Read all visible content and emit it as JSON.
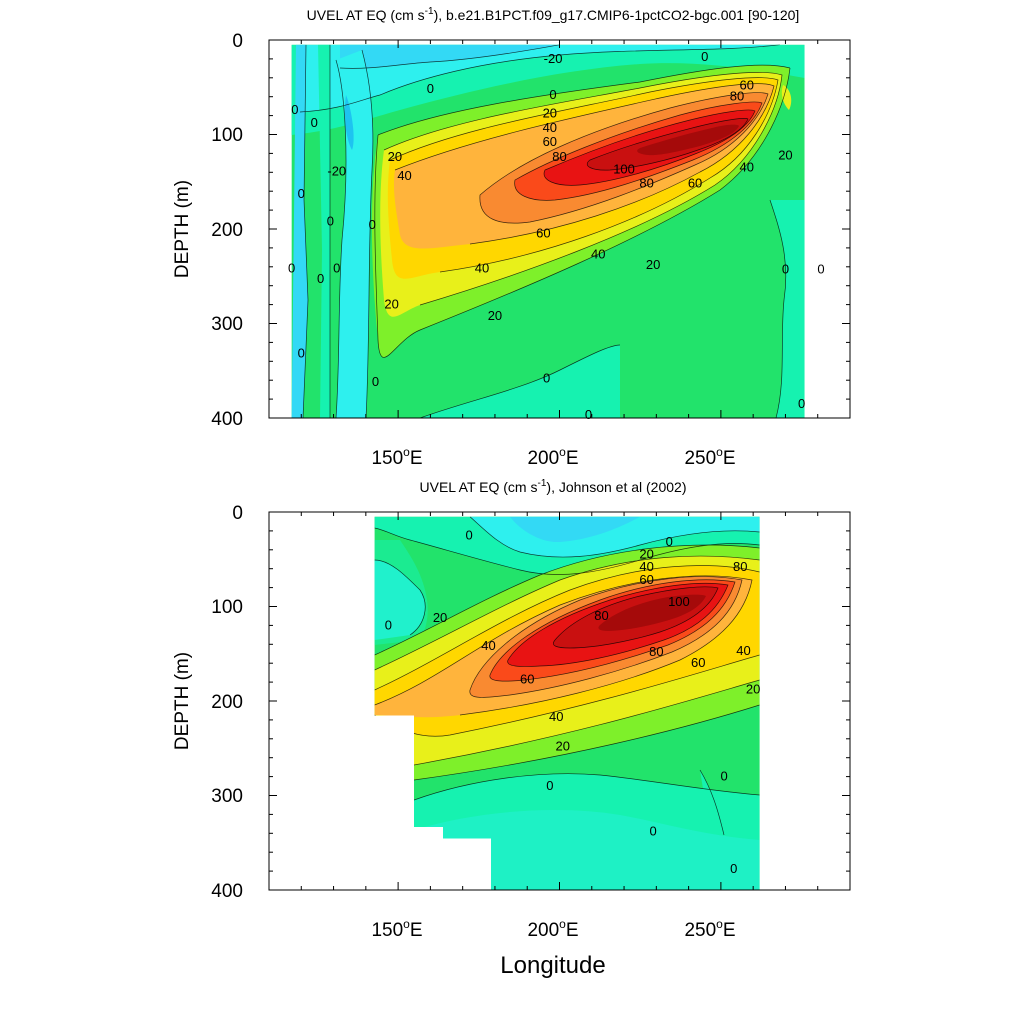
{
  "chart_data": [
    {
      "type": "contour",
      "title": "UVEL AT EQ (cm s",
      "title_sup": "-1",
      "title_rest": "), b.e21.B1PCT.f09_g17.CMIP6-1pctCO2-bgc.001 [90-120]",
      "ylabel": "DEPTH (m)",
      "xlabel": "",
      "xlim": [
        110,
        290
      ],
      "ylim": [
        0,
        400
      ],
      "y_inverted": true,
      "y_ticks": [
        "0",
        "100",
        "200",
        "300",
        "400"
      ],
      "x_ticks": [
        {
          "value": 150,
          "label": "150",
          "unit": "o",
          "hem": "E"
        },
        {
          "value": 200,
          "label": "200",
          "unit": "o",
          "hem": "E"
        },
        {
          "value": 250,
          "label": "250",
          "unit": "o",
          "hem": "E"
        }
      ],
      "data_extent": {
        "lon": [
          117,
          279
        ],
        "depth": [
          5,
          400
        ]
      },
      "jet_core": {
        "lon": 235,
        "depth": 110,
        "max_speed": 110
      },
      "contour_labels": [
        {
          "lon": 198,
          "depth": 20,
          "text": "-20"
        },
        {
          "lon": 245,
          "depth": 18,
          "text": "0"
        },
        {
          "lon": 258,
          "depth": 48,
          "text": "60"
        },
        {
          "lon": 255,
          "depth": 60,
          "text": "80"
        },
        {
          "lon": 198,
          "depth": 58,
          "text": "0"
        },
        {
          "lon": 160,
          "depth": 52,
          "text": "0"
        },
        {
          "lon": 197,
          "depth": 78,
          "text": "20"
        },
        {
          "lon": 197,
          "depth": 93,
          "text": "40"
        },
        {
          "lon": 197,
          "depth": 108,
          "text": "60"
        },
        {
          "lon": 200,
          "depth": 124,
          "text": "80"
        },
        {
          "lon": 220,
          "depth": 137,
          "text": "100"
        },
        {
          "lon": 227,
          "depth": 152,
          "text": "80"
        },
        {
          "lon": 242,
          "depth": 152,
          "text": "60"
        },
        {
          "lon": 258,
          "depth": 135,
          "text": "40"
        },
        {
          "lon": 270,
          "depth": 122,
          "text": "20"
        },
        {
          "lon": 149,
          "depth": 124,
          "text": "20"
        },
        {
          "lon": 152,
          "depth": 144,
          "text": "40"
        },
        {
          "lon": 195,
          "depth": 205,
          "text": "60"
        },
        {
          "lon": 212,
          "depth": 227,
          "text": "40"
        },
        {
          "lon": 229,
          "depth": 238,
          "text": "20"
        },
        {
          "lon": 176,
          "depth": 242,
          "text": "40"
        },
        {
          "lon": 180,
          "depth": 292,
          "text": "20"
        },
        {
          "lon": 148,
          "depth": 280,
          "text": "20"
        },
        {
          "lon": 131,
          "depth": 139,
          "text": "-20"
        },
        {
          "lon": 196,
          "depth": 358,
          "text": "0"
        },
        {
          "lon": 209,
          "depth": 397,
          "text": "0"
        },
        {
          "lon": 118,
          "depth": 74,
          "text": "0"
        },
        {
          "lon": 124,
          "depth": 88,
          "text": "0"
        },
        {
          "lon": 120,
          "depth": 163,
          "text": "0"
        },
        {
          "lon": 129,
          "depth": 192,
          "text": "0"
        },
        {
          "lon": 142,
          "depth": 196,
          "text": "0"
        },
        {
          "lon": 117,
          "depth": 242,
          "text": "0"
        },
        {
          "lon": 131,
          "depth": 242,
          "text": "0"
        },
        {
          "lon": 126,
          "depth": 253,
          "text": "0"
        },
        {
          "lon": 120,
          "depth": 332,
          "text": "0"
        },
        {
          "lon": 143,
          "depth": 362,
          "text": "0"
        },
        {
          "lon": 270,
          "depth": 243,
          "text": "0"
        },
        {
          "lon": 281,
          "depth": 243,
          "text": "0"
        },
        {
          "lon": 275,
          "depth": 385,
          "text": "0"
        }
      ]
    },
    {
      "type": "contour",
      "title": "UVEL AT EQ (cm s",
      "title_sup": "-1",
      "title_rest": "), Johnson et al (2002)",
      "ylabel": "DEPTH (m)",
      "xlabel": "Longitude",
      "xlim": [
        110,
        290
      ],
      "ylim": [
        0,
        400
      ],
      "y_inverted": true,
      "y_ticks": [
        "0",
        "100",
        "200",
        "300",
        "400"
      ],
      "x_ticks": [
        {
          "value": 150,
          "label": "150",
          "unit": "o",
          "hem": "E"
        },
        {
          "value": 200,
          "label": "200",
          "unit": "o",
          "hem": "E"
        },
        {
          "value": 250,
          "label": "250",
          "unit": "o",
          "hem": "E"
        }
      ],
      "data_extent": {
        "lon": [
          143,
          265
        ],
        "depth": [
          5,
          400
        ]
      },
      "jet_core": {
        "lon": 232,
        "depth": 95,
        "max_speed": 105
      },
      "contour_labels": [
        {
          "lon": 172,
          "depth": 25,
          "text": "0"
        },
        {
          "lon": 234,
          "depth": 32,
          "text": "0"
        },
        {
          "lon": 227,
          "depth": 45,
          "text": "20"
        },
        {
          "lon": 227,
          "depth": 58,
          "text": "40"
        },
        {
          "lon": 227,
          "depth": 72,
          "text": "60"
        },
        {
          "lon": 163,
          "depth": 112,
          "text": "20"
        },
        {
          "lon": 147,
          "depth": 120,
          "text": "0"
        },
        {
          "lon": 178,
          "depth": 142,
          "text": "40"
        },
        {
          "lon": 213,
          "depth": 110,
          "text": "80"
        },
        {
          "lon": 237,
          "depth": 95,
          "text": "100"
        },
        {
          "lon": 256,
          "depth": 58,
          "text": "80"
        },
        {
          "lon": 230,
          "depth": 148,
          "text": "80"
        },
        {
          "lon": 243,
          "depth": 160,
          "text": "60"
        },
        {
          "lon": 190,
          "depth": 177,
          "text": "60"
        },
        {
          "lon": 257,
          "depth": 147,
          "text": "40"
        },
        {
          "lon": 260,
          "depth": 188,
          "text": "20"
        },
        {
          "lon": 199,
          "depth": 217,
          "text": "40"
        },
        {
          "lon": 201,
          "depth": 248,
          "text": "20"
        },
        {
          "lon": 197,
          "depth": 290,
          "text": "0"
        },
        {
          "lon": 251,
          "depth": 280,
          "text": "0"
        },
        {
          "lon": 229,
          "depth": 338,
          "text": "0"
        },
        {
          "lon": 254,
          "depth": 378,
          "text": "0"
        }
      ]
    }
  ]
}
